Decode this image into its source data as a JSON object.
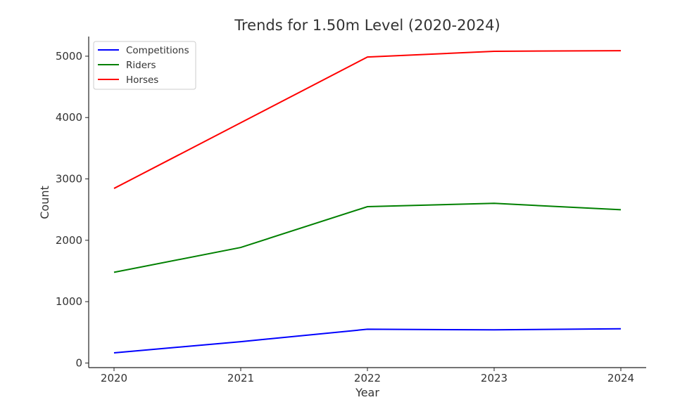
{
  "chart_data": {
    "type": "line",
    "title": "Trends for 1.50m Level (2020-2024)",
    "xlabel": "Year",
    "ylabel": "Count",
    "x": [
      2020,
      2021,
      2022,
      2023,
      2024
    ],
    "x_tick_labels": [
      "2020",
      "2021",
      "2022",
      "2023",
      "2024"
    ],
    "y_ticks": [
      0,
      1000,
      2000,
      3000,
      4000,
      5000
    ],
    "y_tick_labels": [
      "0",
      "1000",
      "2000",
      "3000",
      "4000",
      "5000"
    ],
    "xlim": [
      2019.8,
      2024.2
    ],
    "ylim": [
      -75,
      5320
    ],
    "grid": false,
    "legend_position": "top-left",
    "series": [
      {
        "name": "Competitions",
        "color": "#0000ff",
        "values": [
          165,
          348,
          550,
          540,
          558
        ]
      },
      {
        "name": "Riders",
        "color": "#008000",
        "values": [
          1478,
          1883,
          2548,
          2602,
          2498
        ]
      },
      {
        "name": "Horses",
        "color": "#ff0000",
        "values": [
          2845,
          3915,
          4986,
          5080,
          5090
        ]
      }
    ]
  }
}
